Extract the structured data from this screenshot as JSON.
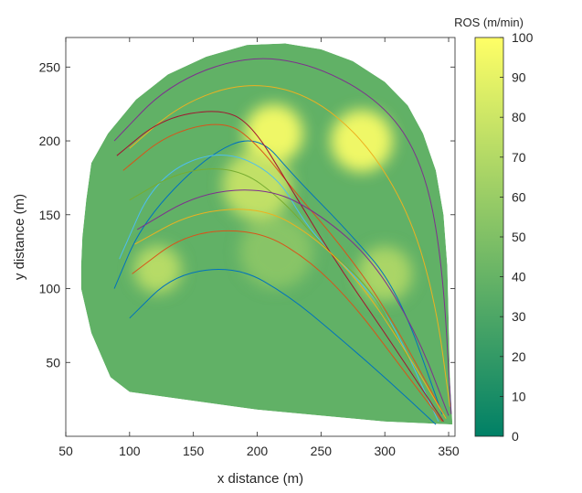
{
  "chart_data": {
    "type": "heatmap",
    "xlabel": "x distance (m)",
    "ylabel": "y distance (m)",
    "xlim": [
      50,
      355
    ],
    "ylim": [
      0,
      270
    ],
    "xticks": [
      50,
      100,
      150,
      200,
      250,
      300,
      350
    ],
    "yticks": [
      50,
      100,
      150,
      200,
      250
    ],
    "grid": false,
    "colorbar": {
      "title": "ROS (m/min)",
      "range": [
        0,
        100
      ],
      "ticks": [
        0,
        10,
        20,
        30,
        40,
        50,
        60,
        70,
        80,
        90,
        100
      ],
      "colormap": "summer",
      "colors": [
        "#008066",
        "#80c066",
        "#ffff66"
      ]
    },
    "domain_outline": [
      [
        62,
        115
      ],
      [
        63,
        135
      ],
      [
        66,
        160
      ],
      [
        70,
        185
      ],
      [
        83,
        205
      ],
      [
        105,
        228
      ],
      [
        130,
        245
      ],
      [
        160,
        257
      ],
      [
        192,
        265
      ],
      [
        222,
        266
      ],
      [
        250,
        262
      ],
      [
        275,
        254
      ],
      [
        300,
        240
      ],
      [
        318,
        224
      ],
      [
        330,
        205
      ],
      [
        340,
        180
      ],
      [
        346,
        150
      ],
      [
        349,
        115
      ],
      [
        350,
        80
      ],
      [
        351,
        40
      ],
      [
        353,
        8
      ],
      [
        300,
        10
      ],
      [
        200,
        18
      ],
      [
        100,
        30
      ],
      [
        85,
        40
      ],
      [
        70,
        70
      ],
      [
        62,
        100
      ]
    ],
    "hotspots": [
      {
        "x": 213,
        "y": 205,
        "value": 100
      },
      {
        "x": 282,
        "y": 200,
        "value": 100
      },
      {
        "x": 122,
        "y": 113,
        "value": 75
      },
      {
        "x": 200,
        "y": 170,
        "value": 80
      },
      {
        "x": 300,
        "y": 110,
        "value": 70
      },
      {
        "x": 215,
        "y": 125,
        "value": 55
      }
    ],
    "contours": [
      {
        "color": "#0072bd",
        "points": [
          [
            88,
            100
          ],
          [
            110,
            145
          ],
          [
            160,
            190
          ],
          [
            200,
            205
          ],
          [
            230,
            175
          ],
          [
            270,
            140
          ],
          [
            310,
            100
          ],
          [
            345,
            15
          ]
        ]
      },
      {
        "color": "#d95319",
        "points": [
          [
            95,
            180
          ],
          [
            130,
            205
          ],
          [
            175,
            214
          ],
          [
            200,
            198
          ],
          [
            230,
            165
          ],
          [
            265,
            130
          ],
          [
            300,
            88
          ],
          [
            348,
            12
          ]
        ]
      },
      {
        "color": "#edb120",
        "points": [
          [
            100,
            195
          ],
          [
            140,
            225
          ],
          [
            190,
            240
          ],
          [
            240,
            232
          ],
          [
            285,
            200
          ],
          [
            320,
            150
          ],
          [
            340,
            90
          ],
          [
            351,
            20
          ]
        ]
      },
      {
        "color": "#7e2f8e",
        "points": [
          [
            88,
            200
          ],
          [
            130,
            238
          ],
          [
            190,
            258
          ],
          [
            245,
            252
          ],
          [
            300,
            225
          ],
          [
            330,
            185
          ],
          [
            345,
            120
          ],
          [
            352,
            15
          ]
        ]
      },
      {
        "color": "#4dbeee",
        "points": [
          [
            92,
            120
          ],
          [
            120,
            175
          ],
          [
            170,
            195
          ],
          [
            215,
            178
          ],
          [
            240,
            140
          ],
          [
            275,
            110
          ],
          [
            305,
            80
          ],
          [
            342,
            10
          ]
        ]
      },
      {
        "color": "#77ac30",
        "points": [
          [
            100,
            160
          ],
          [
            140,
            180
          ],
          [
            185,
            182
          ],
          [
            220,
            160
          ],
          [
            250,
            130
          ],
          [
            290,
            100
          ],
          [
            320,
            50
          ]
        ]
      },
      {
        "color": "#a2142f",
        "points": [
          [
            90,
            190
          ],
          [
            125,
            215
          ],
          [
            170,
            222
          ],
          [
            195,
            212
          ],
          [
            225,
            170
          ],
          [
            260,
            120
          ],
          [
            300,
            70
          ],
          [
            346,
            10
          ]
        ]
      },
      {
        "color": "#0072bd",
        "points": [
          [
            100,
            80
          ],
          [
            135,
            110
          ],
          [
            185,
            115
          ],
          [
            225,
            95
          ],
          [
            260,
            70
          ],
          [
            300,
            40
          ],
          [
            340,
            8
          ]
        ]
      },
      {
        "color": "#d95319",
        "points": [
          [
            102,
            110
          ],
          [
            145,
            138
          ],
          [
            200,
            140
          ],
          [
            240,
            120
          ],
          [
            275,
            90
          ],
          [
            310,
            50
          ],
          [
            345,
            10
          ]
        ]
      },
      {
        "color": "#edb120",
        "points": [
          [
            104,
            130
          ],
          [
            150,
            152
          ],
          [
            205,
            155
          ],
          [
            245,
            135
          ],
          [
            280,
            105
          ],
          [
            315,
            60
          ],
          [
            348,
            12
          ]
        ]
      },
      {
        "color": "#7e2f8e",
        "points": [
          [
            106,
            140
          ],
          [
            155,
            165
          ],
          [
            210,
            168
          ],
          [
            250,
            150
          ],
          [
            290,
            120
          ],
          [
            325,
            70
          ],
          [
            350,
            14
          ]
        ]
      }
    ]
  }
}
